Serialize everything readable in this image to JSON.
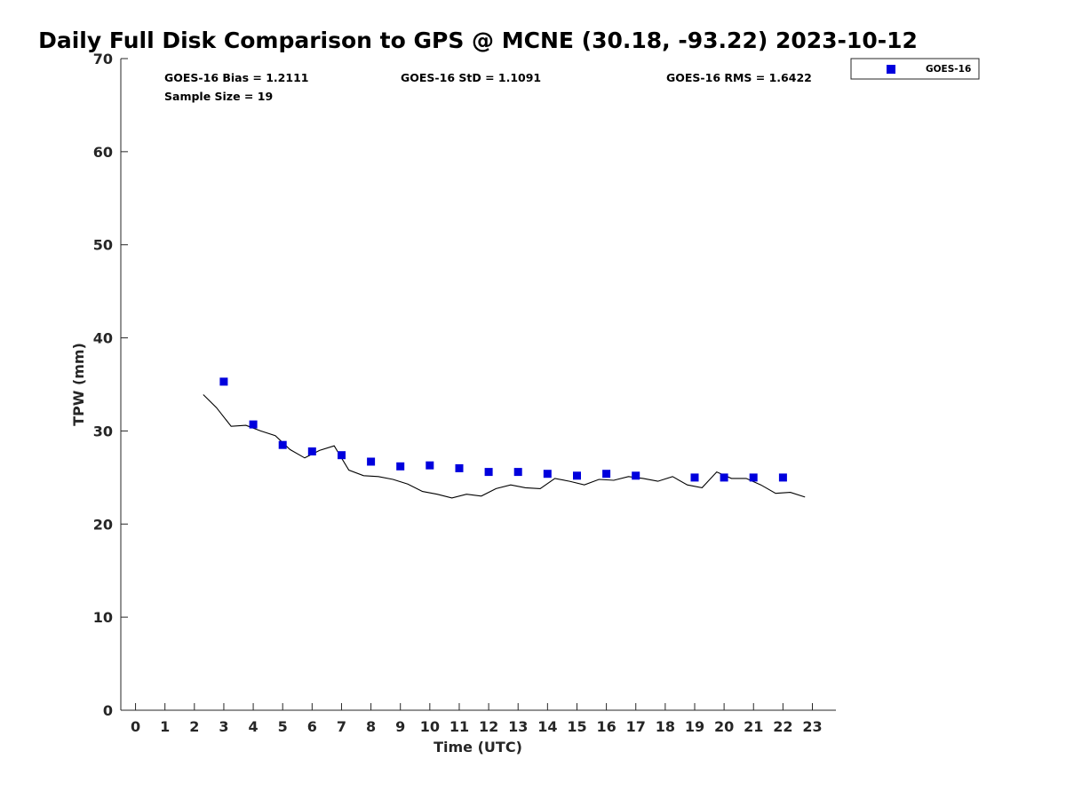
{
  "chart_data": {
    "type": "scatter",
    "title": "Daily Full Disk Comparison to GPS @ MCNE (30.18, -93.22) 2023-10-12",
    "xlabel": "Time (UTC)",
    "ylabel": "TPW (mm)",
    "xlim": [
      -0.5,
      23.8
    ],
    "ylim": [
      0,
      70
    ],
    "xticks": [
      "0",
      "1",
      "2",
      "3",
      "4",
      "5",
      "6",
      "7",
      "8",
      "9",
      "10",
      "11",
      "12",
      "13",
      "14",
      "15",
      "16",
      "17",
      "18",
      "19",
      "20",
      "21",
      "22",
      "23"
    ],
    "yticks": [
      "0",
      "10",
      "20",
      "30",
      "40",
      "50",
      "60",
      "70"
    ],
    "grid": false,
    "legend_position": "top-right outside",
    "stats": {
      "bias": "GOES-16 Bias = 1.2111",
      "std": "GOES-16 StD = 1.1091",
      "rms": "GOES-16 RMS = 1.6422",
      "sample": "Sample Size = 19"
    },
    "series": [
      {
        "name": "GOES-16",
        "kind": "scatter",
        "color": "#0000dd",
        "x": [
          3,
          4,
          5,
          6,
          7,
          8,
          9,
          10,
          11,
          12,
          13,
          14,
          15,
          16,
          17,
          19,
          20,
          21,
          22
        ],
        "y": [
          35.3,
          30.7,
          28.5,
          27.8,
          27.4,
          26.7,
          26.2,
          26.3,
          26.0,
          25.6,
          25.6,
          25.4,
          25.2,
          25.4,
          25.2,
          25.0,
          25.0,
          25.0,
          25.0
        ]
      },
      {
        "kind": "line",
        "color": "#000000",
        "x": [
          2.3,
          2.75,
          3.25,
          3.75,
          4.25,
          4.75,
          5.25,
          5.75,
          6.25,
          6.75,
          7.25,
          7.75,
          8.25,
          8.75,
          9.25,
          9.75,
          10.25,
          10.75,
          11.25,
          11.75,
          12.25,
          12.75,
          13.25,
          13.75,
          14.25,
          14.75,
          15.25,
          15.75,
          16.25,
          16.75,
          17.25,
          17.75,
          18.25,
          18.75,
          19.25,
          19.75,
          20.25,
          20.75,
          21.25,
          21.75,
          22.25,
          22.75
        ],
        "y": [
          33.9,
          32.5,
          30.5,
          30.6,
          30.0,
          29.5,
          28.0,
          27.1,
          27.9,
          28.4,
          25.8,
          25.2,
          25.1,
          24.8,
          24.3,
          23.5,
          23.2,
          22.8,
          23.2,
          23.0,
          23.8,
          24.2,
          23.9,
          23.8,
          24.9,
          24.6,
          24.2,
          24.8,
          24.7,
          25.1,
          24.9,
          24.6,
          25.1,
          24.2,
          23.9,
          25.6,
          24.9,
          24.9,
          24.2,
          23.3,
          23.4,
          22.9
        ]
      }
    ]
  }
}
